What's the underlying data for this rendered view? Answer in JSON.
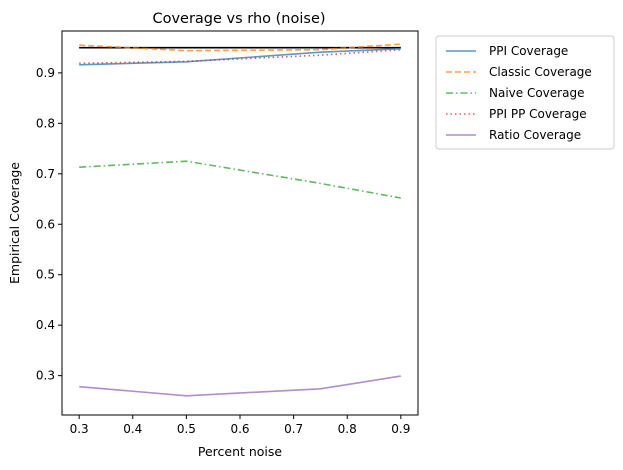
{
  "chart_data": {
    "type": "line",
    "title": "Coverage vs rho (noise)",
    "xlabel": "Percent noise",
    "ylabel": "Empirical Coverage",
    "xlim": [
      0.268,
      0.932
    ],
    "ylim": [
      0.222,
      0.983
    ],
    "xticks": [
      "0.3",
      "0.4",
      "0.5",
      "0.6",
      "0.7",
      "0.8",
      "0.9"
    ],
    "yticks": [
      "0.3",
      "0.4",
      "0.5",
      "0.6",
      "0.7",
      "0.8",
      "0.9"
    ],
    "grid": false,
    "legend_position": "outside-right",
    "reference_line": {
      "y": 0.95,
      "color": "#000000"
    },
    "series": [
      {
        "name": "PPI Coverage",
        "color": "#1f77b4",
        "dash": "solid",
        "x": [
          0.3,
          0.5,
          0.75,
          0.9
        ],
        "y": [
          0.916,
          0.922,
          0.941,
          0.948
        ]
      },
      {
        "name": "Classic Coverage",
        "color": "#ff7f0e",
        "dash": "dashed",
        "x": [
          0.3,
          0.5,
          0.75,
          0.9
        ],
        "y": [
          0.955,
          0.944,
          0.946,
          0.957
        ]
      },
      {
        "name": "Naive Coverage",
        "color": "#2ca02c",
        "dash": "dashdot",
        "x": [
          0.3,
          0.5,
          0.75,
          0.9
        ],
        "y": [
          0.713,
          0.725,
          0.681,
          0.652
        ]
      },
      {
        "name": "PPI PP Coverage",
        "color": "#d62728",
        "dash": "dotted",
        "x": [
          0.3,
          0.5,
          0.75,
          0.9
        ],
        "y": [
          0.919,
          0.923,
          0.935,
          0.946
        ]
      },
      {
        "name": "Ratio Coverage",
        "color": "#9467bd",
        "dash": "solid",
        "x": [
          0.3,
          0.5,
          0.75,
          0.9
        ],
        "y": [
          0.278,
          0.26,
          0.274,
          0.299
        ]
      }
    ]
  }
}
